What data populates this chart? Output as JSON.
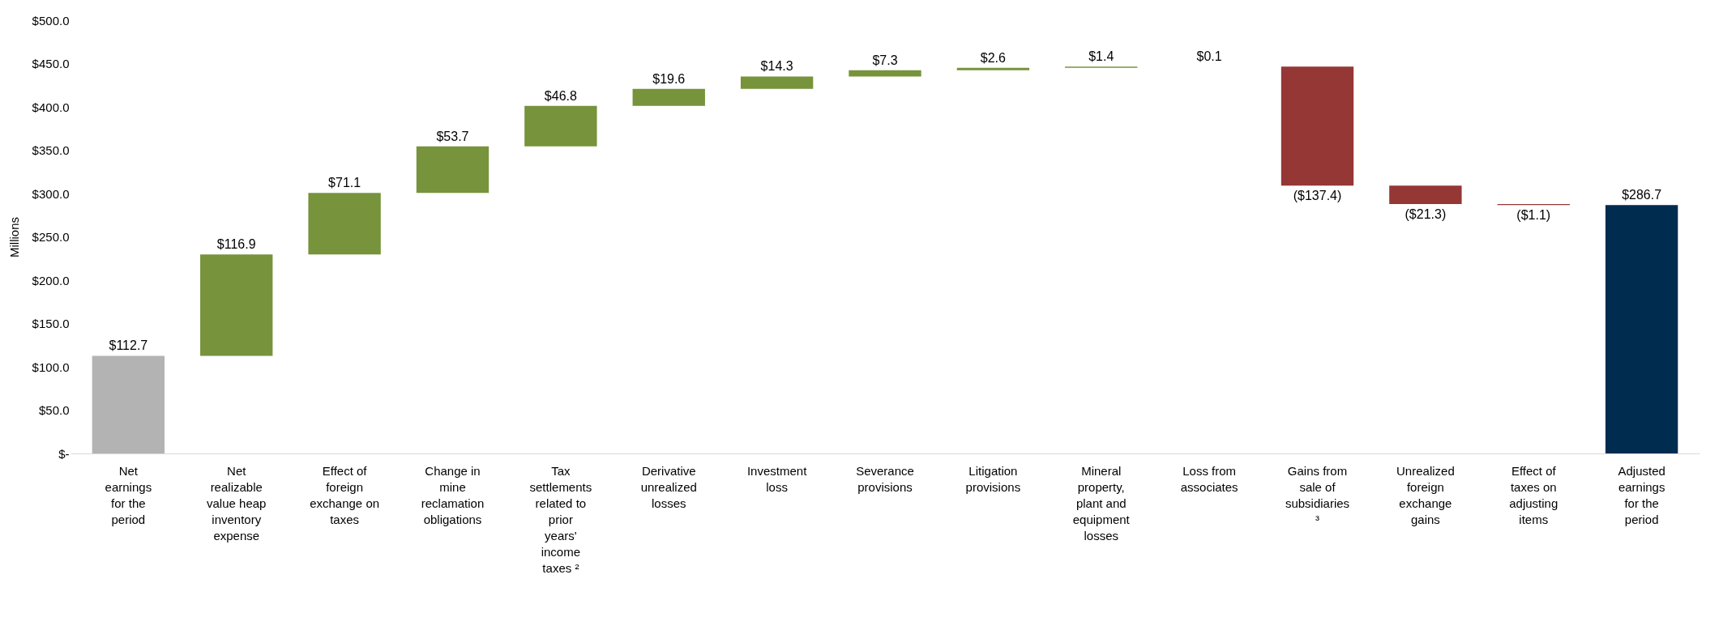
{
  "chart_data": {
    "type": "bar",
    "ylabel": "Millions",
    "categories": [
      "Net earnings for the period",
      "Net realizable value heap inventory expense",
      "Effect of foreign exchange on taxes",
      "Change in mine reclamation obligations",
      "Tax settlements related to prior years' income taxes ²",
      "Derivative unrealized losses",
      "Investment loss",
      "Severance provisions",
      "Litigation provisions",
      "Mineral property, plant and equipment losses",
      "Loss from associates",
      "Gains from sale of subsidiaries ³",
      "Unrealized foreign exchange gains",
      "Effect of taxes on adjusting items",
      "Adjusted earnings for the period"
    ],
    "values": [
      112.7,
      116.9,
      71.1,
      53.7,
      46.8,
      19.6,
      14.3,
      7.3,
      2.6,
      1.4,
      0.1,
      -137.4,
      -21.3,
      -1.1,
      286.7
    ],
    "base": [
      0,
      112.7,
      229.6,
      300.7,
      354.4,
      401.2,
      420.8,
      435.1,
      442.4,
      445.0,
      446.4,
      446.5,
      309.1,
      287.8,
      0
    ],
    "colors": [
      "#b3b3b3",
      "#77933c",
      "#77933c",
      "#77933c",
      "#77933c",
      "#77933c",
      "#77933c",
      "#77933c",
      "#77933c",
      "#77933c",
      "#77933c",
      "#953735",
      "#953735",
      "#953735",
      "#002c4f"
    ],
    "value_labels": [
      "$112.7",
      "$116.9",
      "$71.1",
      "$53.7",
      "$46.8",
      "$19.6",
      "$14.3",
      "$7.3",
      "$2.6",
      "$1.4",
      "$0.1",
      "($137.4)",
      "($21.3)",
      "($1.1)",
      "$286.7"
    ],
    "ylim": [
      0,
      500
    ],
    "yticks": [
      {
        "value": 0,
        "label": "$-"
      },
      {
        "value": 50,
        "label": "$50.0"
      },
      {
        "value": 100,
        "label": "$100.0"
      },
      {
        "value": 150,
        "label": "$150.0"
      },
      {
        "value": 200,
        "label": "$200.0"
      },
      {
        "value": 250,
        "label": "$250.0"
      },
      {
        "value": 300,
        "label": "$300.0"
      },
      {
        "value": 350,
        "label": "$350.0"
      },
      {
        "value": 400,
        "label": "$400.0"
      },
      {
        "value": 450,
        "label": "$450.0"
      },
      {
        "value": 500,
        "label": "$500.0"
      }
    ],
    "grid": false
  }
}
